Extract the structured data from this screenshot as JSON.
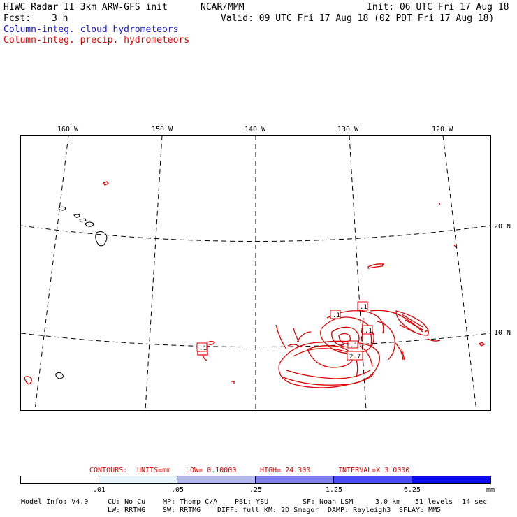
{
  "header": {
    "model_title": "HIWC Radar II 3km ARW-GFS init",
    "org": "NCAR/MMM",
    "init": "Init: 06 UTC Fri 17 Aug 18",
    "fcst_label": "Fcst:",
    "fcst_value": "3 h",
    "valid": "Valid: 09 UTC Fri 17 Aug 18 (02 PDT Fri 17 Aug 18)",
    "field1": "Column-integ. cloud hydrometeors",
    "field2": "Column-integ. precip. hydrometeors"
  },
  "colors": {
    "cloud_text": "#1a1acc",
    "precip": "#e00000"
  },
  "map": {
    "lon_labels": [
      "160 W",
      "150 W",
      "140 W",
      "130 W",
      "120 W"
    ],
    "lat_labels": [
      "20 N",
      "10 N"
    ],
    "contour_labels": [
      ".1",
      ".1",
      ".1",
      ".1",
      "2.7",
      ".1"
    ]
  },
  "contours_line": {
    "contours": "CONTOURS:",
    "units": "UNITS=mm",
    "low": "LOW= 0.10000",
    "high": "HIGH= 24.300",
    "interval": "INTERVAL=X 3.0000"
  },
  "colorbar": {
    "labels": [
      ".01",
      ".05",
      ".25",
      "1.25",
      "6.25",
      "mm"
    ],
    "colors": [
      "#ffffff",
      "#e6f4fb",
      "#b4b8ee",
      "#7f7fee",
      "#4a4af4",
      "#0c0cee"
    ]
  },
  "model_info": {
    "line1": [
      "Model Info: V4.0",
      "CU: No Cu",
      "MP: Thomp C/A",
      "PBL: YSU",
      "SF: Noah LSM",
      "3.0 km",
      "51 levels",
      "14 sec"
    ],
    "line2": [
      "LW: RRTMG",
      "SW: RRTMG",
      "DIFF: full",
      "KM: 2D Smagor",
      "DAMP: Rayleigh3",
      "SFLAY: MM5"
    ]
  }
}
